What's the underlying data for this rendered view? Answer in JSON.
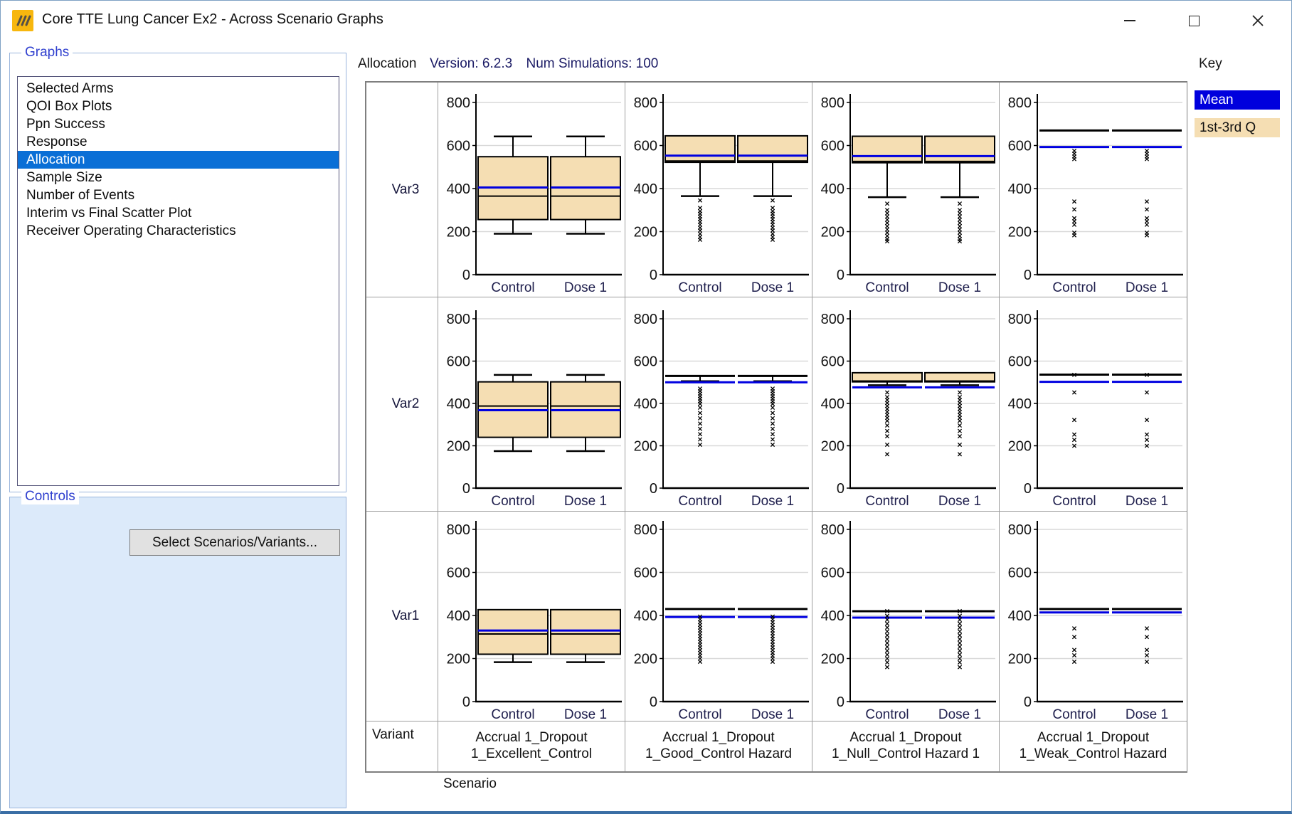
{
  "window": {
    "title": "Core TTE Lung Cancer Ex2 - Across Scenario Graphs"
  },
  "sidebar": {
    "graphs_label": "Graphs",
    "graph_items": [
      "Selected Arms",
      "QOI Box Plots",
      "Ppn Success",
      "Response",
      "Allocation",
      "Sample Size",
      "Number of Events",
      "Interim vs Final Scatter Plot",
      "Receiver Operating Characteristics"
    ],
    "selected_item": "Allocation",
    "controls_label": "Controls",
    "select_button": "Select Scenarios/Variants..."
  },
  "header": {
    "graph_name": "Allocation",
    "version_label": "Version: 6.2.3",
    "sims_label": "Num Simulations: 100"
  },
  "key": {
    "title": "Key",
    "mean_label": "Mean",
    "quartile_label": "1st-3rd Q",
    "mean_color": "#0000dd",
    "quartile_color": "#f5deb3"
  },
  "chart_data": {
    "type": "boxplot-grid",
    "title": "Allocation",
    "arms": [
      "Control",
      "Dose 1"
    ],
    "y_axis": {
      "min": 0,
      "max": 800,
      "ticks": [
        0,
        200,
        400,
        600,
        800
      ]
    },
    "rows": [
      "Var3",
      "Var2",
      "Var1"
    ],
    "row_header": "Variant",
    "x_axis_label": "Scenario",
    "columns": [
      "Accrual 1_Dropout 1_Excellent_Control",
      "Accrual 1_Dropout 1_Good_Control Hazard",
      "Accrual 1_Dropout 1_Null_Control Hazard 1",
      "Accrual 1_Dropout 1_Weak_Control Hazard"
    ],
    "note": "Both arms (Control, Dose 1) show identical distributions in every cell",
    "cells": {
      "Var3": [
        {
          "q1": 256,
          "median": 365,
          "mean": 405,
          "q3": 548,
          "whisker_low": 190,
          "whisker_high": 642,
          "outliers": []
        },
        {
          "q1": 522,
          "median": 528,
          "mean": 553,
          "q3": 645,
          "whisker_low": 365,
          "whisker_high": null,
          "outliers": [
            345,
            310,
            295,
            283,
            270,
            258,
            245,
            232,
            218,
            205,
            190,
            175,
            162
          ]
        },
        {
          "q1": 520,
          "median": 526,
          "mean": 551,
          "q3": 643,
          "whisker_low": 360,
          "whisker_high": null,
          "outliers": [
            330,
            300,
            285,
            270,
            255,
            240,
            225,
            210,
            195,
            180,
            165,
            155
          ]
        },
        {
          "q1": 668,
          "median": 670,
          "mean": 593,
          "q3": 672,
          "whisker_low": null,
          "whisker_high": null,
          "outliers": [
            575,
            562,
            549,
            537,
            340,
            303,
            262,
            248,
            232,
            195,
            183
          ]
        }
      ],
      "Var2": [
        {
          "q1": 240,
          "median": 388,
          "mean": 368,
          "q3": 502,
          "whisker_low": 175,
          "whisker_high": 535,
          "outliers": []
        },
        {
          "q1": 528,
          "median": 530,
          "mean": 500,
          "q3": 532,
          "whisker_low": 505,
          "whisker_high": null,
          "outliers": [
            470,
            458,
            446,
            434,
            422,
            410,
            398,
            380,
            355,
            330,
            305,
            280,
            255,
            230,
            205
          ]
        },
        {
          "q1": 502,
          "median": 506,
          "mean": 476,
          "q3": 545,
          "whisker_low": 486,
          "whisker_high": null,
          "outliers": [
            452,
            430,
            416,
            402,
            388,
            374,
            360,
            346,
            332,
            318,
            296,
            270,
            245,
            205,
            160
          ]
        },
        {
          "q1": 534,
          "median": 536,
          "mean": 502,
          "q3": 538,
          "whisker_low": null,
          "whisker_high": null,
          "outliers": [
            535,
            452,
            322,
            253,
            228,
            200
          ]
        }
      ],
      "Var1": [
        {
          "q1": 220,
          "median": 314,
          "mean": 330,
          "q3": 427,
          "whisker_low": 183,
          "whisker_high": null,
          "outliers": []
        },
        {
          "q1": 428,
          "median": 430,
          "mean": 393,
          "q3": 432,
          "whisker_low": null,
          "whisker_high": null,
          "outliers": [
            395,
            382,
            369,
            356,
            343,
            330,
            317,
            304,
            291,
            278,
            265,
            252,
            239,
            226,
            213,
            200,
            185
          ]
        },
        {
          "q1": 418,
          "median": 420,
          "mean": 390,
          "q3": 422,
          "whisker_low": null,
          "whisker_high": null,
          "outliers": [
            420,
            398,
            380,
            362,
            344,
            326,
            308,
            290,
            272,
            254,
            236,
            218,
            200,
            182,
            160
          ]
        },
        {
          "q1": 428,
          "median": 430,
          "mean": 414,
          "q3": 432,
          "whisker_low": null,
          "whisker_high": null,
          "outliers": [
            340,
            300,
            240,
            215,
            185
          ]
        }
      ]
    },
    "colors": {
      "box_fill": "#f5deb3",
      "box_stroke": "#000000",
      "mean_line": "#0000e0",
      "median_line": "#000000",
      "gridline": "#d9d9d9"
    }
  }
}
